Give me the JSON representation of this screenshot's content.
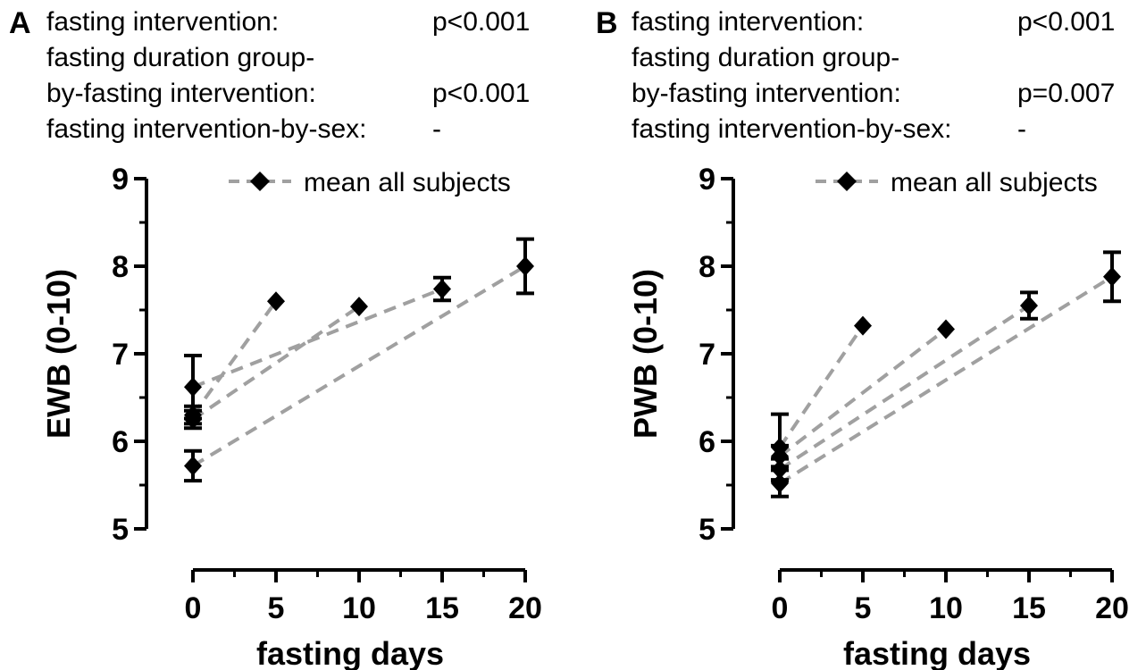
{
  "panels": [
    {
      "letter": "A",
      "stats": [
        {
          "label": "fasting intervention:",
          "value": "p<0.001"
        },
        {
          "label": "fasting duration group-",
          "value": ""
        },
        {
          "label": "by-fasting intervention:",
          "value": "p<0.001"
        },
        {
          "label": "fasting intervention-by-sex:",
          "value": "-"
        }
      ]
    },
    {
      "letter": "B",
      "stats": [
        {
          "label": "fasting intervention:",
          "value": "p<0.001"
        },
        {
          "label": "fasting duration group-",
          "value": ""
        },
        {
          "label": "by-fasting intervention:",
          "value": "p=0.007"
        },
        {
          "label": "fasting intervention-by-sex:",
          "value": "-"
        }
      ]
    }
  ],
  "chart_data": [
    {
      "type": "line",
      "xlabel": "fasting days",
      "ylabel": "EWB (0-10)",
      "xlim": [
        0,
        20
      ],
      "ylim": [
        5,
        9
      ],
      "xticks": [
        0,
        5,
        10,
        15,
        20
      ],
      "yticks": [
        5,
        6,
        7,
        8,
        9
      ],
      "legend": {
        "label": "mean all subjects",
        "position": "top-right"
      },
      "series": [
        {
          "x": [
            0,
            5
          ],
          "y": [
            6.3,
            7.6
          ],
          "err": [
            0.1,
            0
          ]
        },
        {
          "x": [
            0,
            10
          ],
          "y": [
            6.25,
            7.54
          ],
          "err": [
            0.1,
            0
          ]
        },
        {
          "x": [
            0,
            15
          ],
          "y": [
            6.62,
            7.74
          ],
          "err": [
            0.36,
            0.13
          ]
        },
        {
          "x": [
            0,
            20
          ],
          "y": [
            5.72,
            8.0
          ],
          "err": [
            0.17,
            0.31
          ]
        }
      ],
      "colors": {
        "line": "#a0a0a0",
        "marker": "#000000"
      }
    },
    {
      "type": "line",
      "xlabel": "fasting days",
      "ylabel": "PWB (0-10)",
      "xlim": [
        0,
        20
      ],
      "ylim": [
        5,
        9
      ],
      "xticks": [
        0,
        5,
        10,
        15,
        20
      ],
      "yticks": [
        5,
        6,
        7,
        8,
        9
      ],
      "legend": {
        "label": "mean all subjects",
        "position": "top-right"
      },
      "series": [
        {
          "x": [
            0,
            5
          ],
          "y": [
            5.93,
            7.32
          ],
          "err": [
            0.38,
            0
          ]
        },
        {
          "x": [
            0,
            10
          ],
          "y": [
            5.83,
            7.28
          ],
          "err": [
            0.12,
            0
          ]
        },
        {
          "x": [
            0,
            15
          ],
          "y": [
            5.68,
            7.55
          ],
          "err": [
            0.12,
            0.15
          ]
        },
        {
          "x": [
            0,
            20
          ],
          "y": [
            5.52,
            7.88
          ],
          "err": [
            0.15,
            0.28
          ]
        }
      ],
      "colors": {
        "line": "#a0a0a0",
        "marker": "#000000"
      }
    }
  ]
}
